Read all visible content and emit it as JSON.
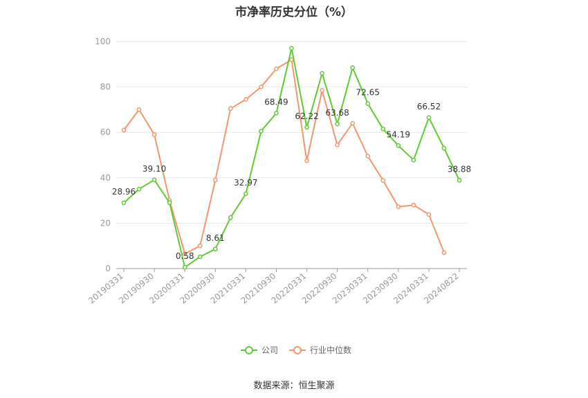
{
  "title": "市净率历史分位（%）",
  "source": "数据来源：恒生聚源",
  "colors": {
    "company": "#5ccc2e",
    "industry": "#f5956b",
    "grid": "#e6e6e6",
    "axis": "#999999"
  },
  "chart_data": {
    "type": "line",
    "title": "市净率历史分位（%）",
    "ylim": [
      0,
      100
    ],
    "yticks": [
      0,
      20,
      40,
      60,
      80,
      100
    ],
    "grid": true,
    "legend_position": "bottom",
    "x_tick_labels": [
      "20190331",
      "20190930",
      "20200331",
      "20200930",
      "20210331",
      "20210930",
      "20220331",
      "20220930",
      "20230331",
      "20230930",
      "20240331",
      "20240822"
    ],
    "x": [
      "20190331",
      "20190630",
      "20190930",
      "20191231",
      "20200331",
      "20200630",
      "20200930",
      "20201231",
      "20210331",
      "20210630",
      "20210930",
      "20211231",
      "20220331",
      "20220630",
      "20220930",
      "20221231",
      "20230331",
      "20230630",
      "20230930",
      "20231231",
      "20240331",
      "20240630",
      "20240822"
    ],
    "series": [
      {
        "name": "公司",
        "values": [
          28.96,
          35.0,
          39.1,
          29.0,
          0.58,
          5.2,
          8.61,
          22.5,
          32.97,
          60.5,
          68.49,
          97.0,
          62.22,
          86.0,
          63.68,
          88.5,
          72.65,
          61.5,
          54.19,
          47.8,
          66.52,
          53.0,
          38.88
        ]
      },
      {
        "name": "行业中位数",
        "values": [
          61.0,
          70.0,
          59.0,
          30.0,
          6.5,
          10.0,
          39.0,
          70.5,
          74.5,
          80.0,
          88.0,
          92.0,
          47.5,
          78.5,
          54.5,
          64.0,
          49.5,
          38.8,
          27.2,
          28.0,
          23.8,
          7.0,
          null
        ]
      }
    ],
    "data_labels": [
      {
        "index": 0,
        "text": "28.96"
      },
      {
        "index": 2,
        "text": "39.10"
      },
      {
        "index": 4,
        "text": "0.58"
      },
      {
        "index": 6,
        "text": "8.61"
      },
      {
        "index": 8,
        "text": "32.97"
      },
      {
        "index": 10,
        "text": "68.49"
      },
      {
        "index": 12,
        "text": "62.22"
      },
      {
        "index": 14,
        "text": "63.68"
      },
      {
        "index": 16,
        "text": "72.65"
      },
      {
        "index": 18,
        "text": "54.19"
      },
      {
        "index": 20,
        "text": "66.52"
      },
      {
        "index": 22,
        "text": "38.88"
      }
    ]
  }
}
